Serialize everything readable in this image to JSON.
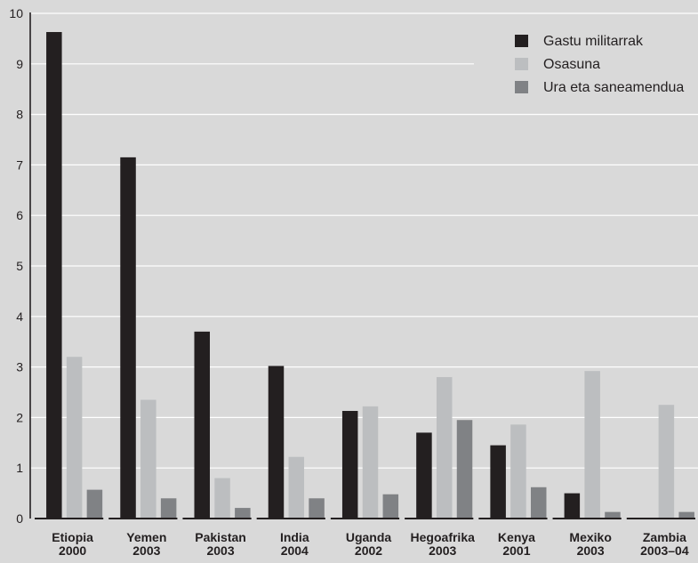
{
  "chart_data": {
    "type": "bar",
    "title": "",
    "xlabel": "",
    "ylabel": "",
    "ylim": [
      0,
      10
    ],
    "yticks": [
      "0",
      "1",
      "2",
      "3",
      "4",
      "5",
      "6",
      "7",
      "8",
      "9",
      "10"
    ],
    "grid": true,
    "legend_position": "top-right",
    "categories": [
      {
        "name": "Etiopia",
        "year": "2000"
      },
      {
        "name": "Yemen",
        "year": "2003"
      },
      {
        "name": "Pakistan",
        "year": "2003"
      },
      {
        "name": "India",
        "year": "2004"
      },
      {
        "name": "Uganda",
        "year": "2002"
      },
      {
        "name": "Hegoafrika",
        "year": "2003"
      },
      {
        "name": "Kenya",
        "year": "2001"
      },
      {
        "name": "Mexiko",
        "year": "2003"
      },
      {
        "name": "Zambia",
        "year": "2003–04"
      }
    ],
    "series": [
      {
        "name": "Gastu militarrak",
        "color": "#231f20",
        "values": [
          9.63,
          7.15,
          3.7,
          3.02,
          2.13,
          1.7,
          1.45,
          0.5,
          0
        ]
      },
      {
        "name": "Osasuna",
        "color": "#bcbec0",
        "values": [
          3.2,
          2.35,
          0.8,
          1.22,
          2.22,
          2.8,
          1.86,
          2.92,
          2.25
        ]
      },
      {
        "name": "Ura eta saneamendua",
        "color": "#808285",
        "values": [
          0.57,
          0.4,
          0.21,
          0.4,
          0.48,
          1.95,
          0.62,
          0.13,
          0.13
        ]
      }
    ]
  }
}
